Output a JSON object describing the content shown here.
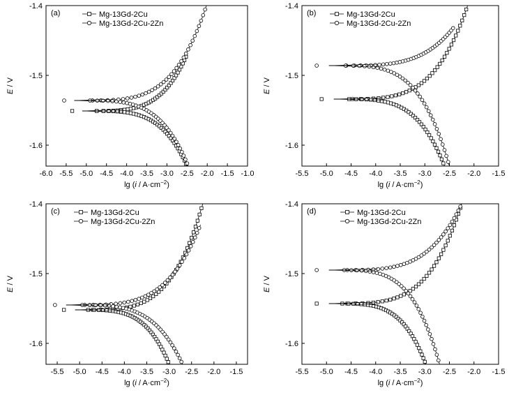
{
  "figure": {
    "series_names": [
      "Mg-13Gd-2Cu",
      "Mg-13Gd-2Cu-2Zn"
    ],
    "xlabel_prefix": "lg (",
    "xlabel_i": "i",
    "xlabel_suffix": " / A·cm",
    "xlabel_exp": "−2",
    "xlabel_close": ")",
    "ylabel_E": "E",
    "ylabel_unit": " / V"
  },
  "chart_data": [
    {
      "panel": "(a)",
      "type": "line",
      "xlim": [
        -6.0,
        -1.0
      ],
      "ylim": [
        -1.63,
        -1.4
      ],
      "xticks": [
        "-6.0",
        "-5.5",
        "-5.0",
        "-4.5",
        "-4.0",
        "-3.5",
        "-3.0",
        "-2.5",
        "-2.0",
        "-1.5",
        "-1.0"
      ],
      "yticks": [
        "-1.4",
        "-1.5",
        "-1.6"
      ],
      "legend_position": "top-left",
      "series": [
        {
          "name": "Mg-13Gd-2Cu",
          "marker": "square",
          "Ecorr": -1.551,
          "icorr": -5.1,
          "anodic_end": [
            -2.5,
            -1.47
          ],
          "cathodic_end": [
            -2.5,
            -1.63
          ]
        },
        {
          "name": "Mg-13Gd-2Cu-2Zn",
          "marker": "circle",
          "Ecorr": -1.536,
          "icorr": -5.3,
          "anodic_end": [
            -2.02,
            -1.4
          ],
          "cathodic_end": [
            -2.47,
            -1.63
          ]
        }
      ]
    },
    {
      "panel": "(b)",
      "type": "line",
      "xlim": [
        -5.5,
        -1.5
      ],
      "ylim": [
        -1.63,
        -1.4
      ],
      "xticks": [
        "-5.5",
        "-5.0",
        "-4.5",
        "-4.0",
        "-3.5",
        "-3.0",
        "-2.5",
        "-2.0",
        "-1.5"
      ],
      "yticks": [
        "-1.4",
        "-1.5",
        "-1.6"
      ],
      "legend_position": "top-right",
      "series": [
        {
          "name": "Mg-13Gd-2Cu",
          "marker": "square",
          "Ecorr": -1.534,
          "icorr": -4.85,
          "anodic_end": [
            -2.13,
            -1.4
          ],
          "cathodic_end": [
            -2.6,
            -1.63
          ]
        },
        {
          "name": "Mg-13Gd-2Cu-2Zn",
          "marker": "circle",
          "Ecorr": -1.486,
          "icorr": -4.95,
          "anodic_end": [
            -2.4,
            -1.43
          ],
          "cathodic_end": [
            -2.5,
            -1.63
          ]
        }
      ]
    },
    {
      "panel": "(c)",
      "type": "line",
      "xlim": [
        -5.75,
        -1.25
      ],
      "ylim": [
        -1.63,
        -1.4
      ],
      "xticks": [
        "-5.5",
        "-5.0",
        "-4.5",
        "-4.0",
        "-3.5",
        "-3.0",
        "-2.5",
        "-2.0",
        "-1.5"
      ],
      "yticks": [
        "-1.4",
        "-1.5",
        "-1.6"
      ],
      "legend_position": "top-left",
      "series": [
        {
          "name": "Mg-13Gd-2Cu",
          "marker": "square",
          "Ecorr": -1.552,
          "icorr": -5.1,
          "anodic_end": [
            -2.25,
            -1.4
          ],
          "cathodic_end": [
            -3.0,
            -1.63
          ]
        },
        {
          "name": "Mg-13Gd-2Cu-2Zn",
          "marker": "circle",
          "Ecorr": -1.545,
          "icorr": -5.3,
          "anodic_end": [
            -2.3,
            -1.43
          ],
          "cathodic_end": [
            -2.7,
            -1.63
          ]
        }
      ]
    },
    {
      "panel": "(d)",
      "type": "line",
      "xlim": [
        -5.5,
        -1.5
      ],
      "ylim": [
        -1.63,
        -1.4
      ],
      "xticks": [
        "-5.5",
        "-5.0",
        "-4.5",
        "-4.0",
        "-3.5",
        "-3.0",
        "-2.5",
        "-2.0",
        "-1.5"
      ],
      "yticks": [
        "-1.4",
        "-1.5",
        "-1.6"
      ],
      "legend_position": "top-left",
      "series": [
        {
          "name": "Mg-13Gd-2Cu",
          "marker": "square",
          "Ecorr": -1.543,
          "icorr": -4.95,
          "anodic_end": [
            -2.25,
            -1.4
          ],
          "cathodic_end": [
            -2.98,
            -1.63
          ]
        },
        {
          "name": "Mg-13Gd-2Cu-2Zn",
          "marker": "circle",
          "Ecorr": -1.495,
          "icorr": -4.95,
          "anodic_end": [
            -2.25,
            -1.4
          ],
          "cathodic_end": [
            -2.7,
            -1.63
          ]
        }
      ]
    }
  ]
}
